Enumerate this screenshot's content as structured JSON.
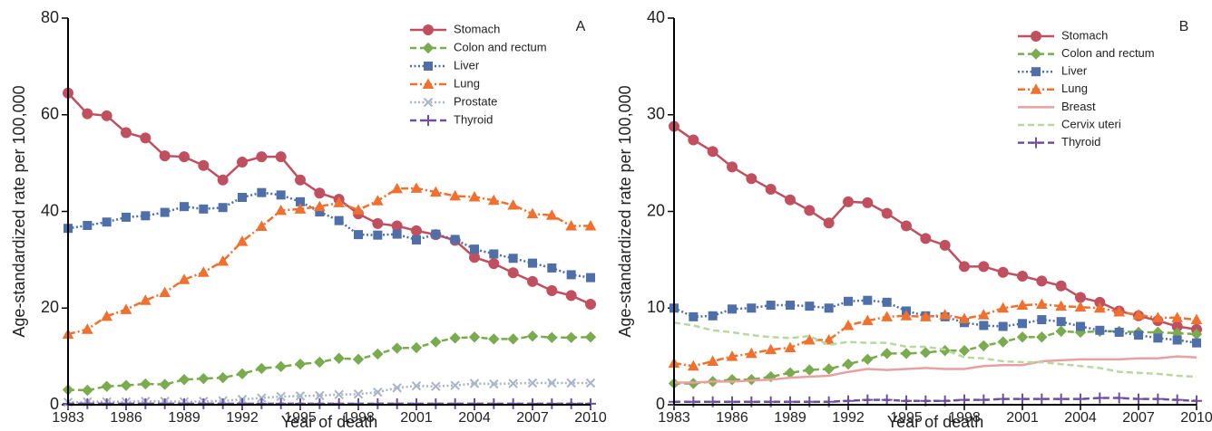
{
  "chart_data": [
    {
      "type": "line",
      "panel_label": "A",
      "xlabel": "Year of death",
      "ylabel": "Age-standardized rate per 100,000",
      "x": [
        1983,
        1984,
        1985,
        1986,
        1987,
        1988,
        1989,
        1990,
        1991,
        1992,
        1993,
        1994,
        1995,
        1996,
        1997,
        1998,
        1999,
        2000,
        2001,
        2002,
        2003,
        2004,
        2005,
        2006,
        2007,
        2008,
        2009,
        2010
      ],
      "xlim": [
        1983,
        2010
      ],
      "xticks": [
        1983,
        1986,
        1989,
        1992,
        1995,
        1998,
        2001,
        2004,
        2007,
        2010
      ],
      "ylim": [
        0,
        80
      ],
      "yticks": [
        0,
        20,
        40,
        60,
        80
      ],
      "series": [
        {
          "name": "Stomach",
          "color": "#c0505f",
          "marker": "circle",
          "dash": "solid",
          "values": [
            64.5,
            60.2,
            59.8,
            56.3,
            55.2,
            51.5,
            51.3,
            49.5,
            46.5,
            50.2,
            51.3,
            51.3,
            46.5,
            43.8,
            42.5,
            39.5,
            37.5,
            37.0,
            36.0,
            35.2,
            34.0,
            30.5,
            29.2,
            27.3,
            25.5,
            23.6,
            22.6,
            20.8
          ]
        },
        {
          "name": "Colon and rectum",
          "color": "#7aab4f",
          "marker": "diamond",
          "dash": "dashed",
          "values": [
            3.1,
            3.0,
            3.8,
            4.0,
            4.3,
            4.2,
            5.2,
            5.4,
            5.6,
            6.4,
            7.5,
            7.9,
            8.4,
            8.8,
            9.6,
            9.4,
            10.5,
            11.7,
            11.8,
            13.0,
            13.8,
            14.0,
            13.6,
            13.6,
            14.2,
            13.9,
            13.9,
            14.0
          ]
        },
        {
          "name": "Liver",
          "color": "#4f6fa8",
          "marker": "square",
          "dash": "dotted",
          "values": [
            36.5,
            37.1,
            37.8,
            38.8,
            39.1,
            39.8,
            41.0,
            40.5,
            40.8,
            42.9,
            43.9,
            43.4,
            42.0,
            39.9,
            38.1,
            35.2,
            35.1,
            35.3,
            34.1,
            35.3,
            34.2,
            32.2,
            31.2,
            30.3,
            29.3,
            28.3,
            26.9,
            26.3
          ]
        },
        {
          "name": "Lung",
          "color": "#f07030",
          "marker": "triangle",
          "dash": "dashdot",
          "values": [
            14.6,
            15.6,
            18.3,
            19.7,
            21.6,
            23.2,
            25.9,
            27.4,
            29.7,
            33.8,
            36.9,
            40.2,
            40.5,
            41.0,
            41.8,
            40.3,
            42.2,
            44.7,
            44.8,
            44.0,
            43.2,
            43.0,
            42.3,
            41.3,
            39.5,
            39.2,
            37.0,
            37.0
          ]
        },
        {
          "name": "Prostate",
          "color": "#a9b4c8",
          "marker": "x",
          "dash": "dotted",
          "values": [
            0.5,
            0.6,
            0.6,
            0.6,
            0.7,
            0.7,
            0.6,
            0.7,
            0.8,
            1.1,
            1.4,
            1.7,
            1.8,
            1.9,
            2.1,
            2.2,
            2.6,
            3.5,
            3.9,
            3.8,
            4.0,
            4.4,
            4.3,
            4.4,
            4.5,
            4.5,
            4.5,
            4.5
          ]
        },
        {
          "name": "Thyroid",
          "color": "#6c4fa0",
          "marker": "plus",
          "dash": "dashed",
          "values": [
            0.2,
            0.2,
            0.2,
            0.2,
            0.2,
            0.2,
            0.2,
            0.2,
            0.2,
            0.2,
            0.2,
            0.2,
            0.2,
            0.2,
            0.2,
            0.2,
            0.2,
            0.2,
            0.2,
            0.2,
            0.2,
            0.2,
            0.2,
            0.2,
            0.2,
            0.2,
            0.2,
            0.2
          ]
        }
      ]
    },
    {
      "type": "line",
      "panel_label": "B",
      "xlabel": "Year of death",
      "ylabel": "Age-standardized rate per 100,000",
      "x": [
        1983,
        1984,
        1985,
        1986,
        1987,
        1988,
        1989,
        1990,
        1991,
        1992,
        1993,
        1994,
        1995,
        1996,
        1997,
        1998,
        1999,
        2000,
        2001,
        2002,
        2003,
        2004,
        2005,
        2006,
        2007,
        2008,
        2009,
        2010
      ],
      "xlim": [
        1983,
        2010
      ],
      "xticks": [
        1983,
        1986,
        1989,
        1992,
        1995,
        1998,
        2001,
        2004,
        2007,
        2010
      ],
      "ylim": [
        0,
        40
      ],
      "yticks": [
        0,
        10,
        20,
        30,
        40
      ],
      "series": [
        {
          "name": "Stomach",
          "color": "#c0505f",
          "marker": "circle",
          "dash": "solid",
          "values": [
            28.8,
            27.4,
            26.2,
            24.6,
            23.4,
            22.3,
            21.2,
            20.1,
            18.8,
            21.0,
            20.9,
            19.8,
            18.5,
            17.2,
            16.5,
            14.3,
            14.3,
            13.7,
            13.3,
            12.8,
            12.3,
            11.1,
            10.6,
            9.7,
            9.2,
            8.7,
            8.1,
            7.8
          ]
        },
        {
          "name": "Colon and rectum",
          "color": "#7aab4f",
          "marker": "diamond",
          "dash": "dashed",
          "values": [
            2.2,
            2.2,
            2.4,
            2.6,
            2.6,
            2.9,
            3.3,
            3.6,
            3.7,
            4.2,
            4.7,
            5.3,
            5.3,
            5.4,
            5.6,
            5.6,
            6.1,
            6.5,
            7.0,
            7.0,
            7.6,
            7.5,
            7.6,
            7.6,
            7.5,
            7.5,
            7.4,
            7.3
          ]
        },
        {
          "name": "Liver",
          "color": "#4f6fa8",
          "marker": "square",
          "dash": "dotted",
          "values": [
            10.0,
            9.1,
            9.2,
            9.9,
            10.0,
            10.3,
            10.3,
            10.2,
            10.0,
            10.7,
            10.8,
            10.6,
            9.7,
            9.2,
            9.1,
            8.5,
            8.2,
            8.1,
            8.4,
            8.8,
            8.6,
            8.1,
            7.7,
            7.5,
            7.2,
            6.9,
            6.7,
            6.4
          ]
        },
        {
          "name": "Lung",
          "color": "#f07030",
          "marker": "triangle",
          "dash": "dashdot",
          "values": [
            4.3,
            4.0,
            4.5,
            5.0,
            5.3,
            5.7,
            5.9,
            6.7,
            6.7,
            8.2,
            8.7,
            9.1,
            9.2,
            9.1,
            9.3,
            8.9,
            9.3,
            10.0,
            10.3,
            10.4,
            10.2,
            10.1,
            10.0,
            9.6,
            9.3,
            9.0,
            9.0,
            8.8
          ]
        },
        {
          "name": "Breast",
          "color": "#e8a0a0",
          "marker": "none",
          "dash": "solid",
          "values": [
            2.3,
            2.3,
            2.4,
            2.4,
            2.5,
            2.6,
            2.8,
            2.9,
            3.0,
            3.4,
            3.7,
            3.6,
            3.7,
            3.8,
            3.7,
            3.7,
            4.0,
            4.1,
            4.1,
            4.5,
            4.6,
            4.7,
            4.7,
            4.7,
            4.8,
            4.8,
            5.0,
            4.9
          ]
        },
        {
          "name": "Cervix uteri",
          "color": "#b8d8a0",
          "marker": "none",
          "dash": "dashed",
          "values": [
            8.5,
            8.2,
            7.7,
            7.5,
            7.2,
            7.0,
            6.9,
            7.1,
            6.2,
            6.5,
            6.4,
            6.4,
            6.0,
            6.0,
            5.7,
            4.9,
            4.8,
            4.5,
            4.4,
            4.4,
            4.2,
            4.0,
            3.8,
            3.4,
            3.3,
            3.2,
            3.0,
            2.9
          ]
        },
        {
          "name": "Thyroid",
          "color": "#6c4fa0",
          "marker": "plus",
          "dash": "dashed",
          "values": [
            0.3,
            0.3,
            0.3,
            0.3,
            0.3,
            0.3,
            0.3,
            0.3,
            0.3,
            0.4,
            0.5,
            0.5,
            0.4,
            0.4,
            0.4,
            0.5,
            0.5,
            0.6,
            0.6,
            0.6,
            0.6,
            0.6,
            0.7,
            0.7,
            0.6,
            0.6,
            0.5,
            0.4
          ]
        }
      ]
    }
  ]
}
